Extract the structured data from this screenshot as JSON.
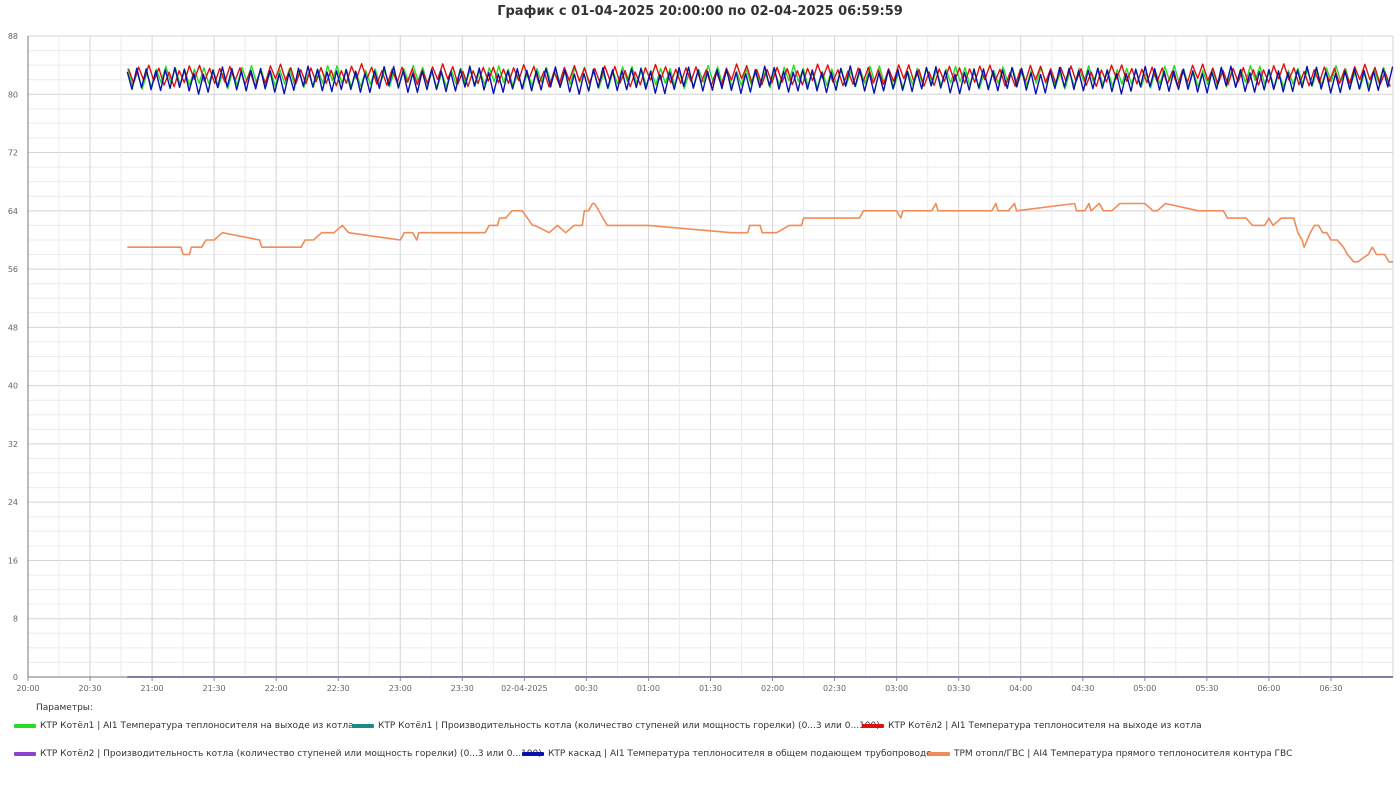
{
  "legend_header": "Параметры:",
  "chart_data": {
    "type": "line",
    "title": "График с 01-04-2025 20:00:00 по 02-04-2025 06:59:59",
    "xlabel": "",
    "ylabel": "",
    "x_unit": "minutes",
    "xlim": [
      0,
      660
    ],
    "ylim": [
      0,
      88
    ],
    "x_ticks": [
      {
        "t": 0,
        "label": "20:00"
      },
      {
        "t": 30,
        "label": "20:30"
      },
      {
        "t": 60,
        "label": "21:00"
      },
      {
        "t": 90,
        "label": "21:30"
      },
      {
        "t": 120,
        "label": "22:00"
      },
      {
        "t": 150,
        "label": "22:30"
      },
      {
        "t": 180,
        "label": "23:00"
      },
      {
        "t": 210,
        "label": "23:30"
      },
      {
        "t": 240,
        "label": "02-04-2025"
      },
      {
        "t": 270,
        "label": "00:30"
      },
      {
        "t": 300,
        "label": "01:00"
      },
      {
        "t": 330,
        "label": "01:30"
      },
      {
        "t": 360,
        "label": "02:00"
      },
      {
        "t": 390,
        "label": "02:30"
      },
      {
        "t": 420,
        "label": "03:00"
      },
      {
        "t": 450,
        "label": "03:30"
      },
      {
        "t": 480,
        "label": "04:00"
      },
      {
        "t": 510,
        "label": "04:30"
      },
      {
        "t": 540,
        "label": "05:00"
      },
      {
        "t": 570,
        "label": "05:30"
      },
      {
        "t": 600,
        "label": "06:00"
      },
      {
        "t": 630,
        "label": "06:30"
      }
    ],
    "y_ticks": [
      0,
      8,
      16,
      24,
      32,
      40,
      48,
      56,
      64,
      72,
      80,
      88
    ],
    "grid": true,
    "legend_position": "bottom",
    "series": [
      {
        "name": "КТР Котёл1 | AI1 Температура теплоносителя на выходе из котла",
        "color": "#22dd22",
        "osc": {
          "start": 48,
          "end": 660,
          "period": 4.6,
          "phase": 0.25,
          "low": 81.3,
          "high": 83.4
        }
      },
      {
        "name": "КТР Котёл1 | Производительность котла (количество ступеней или мощность горелки) (0...3 или 0...100)",
        "color": "#1a8a8a",
        "x": [
          48,
          660
        ],
        "y": [
          0,
          0
        ]
      },
      {
        "name": "КТР Котёл2 | AI1 Температура теплоносителя на выходе из котла",
        "color": "#dd1111",
        "osc": {
          "start": 48,
          "end": 660,
          "period": 4.9,
          "phase": 0.6,
          "low": 81.6,
          "high": 83.6
        }
      },
      {
        "name": "КТР Котёл2 | Производительность котла (количество ступеней или мощность горелки) (0...3 или 0...100)",
        "color": "#8844cc",
        "x": [
          48,
          660
        ],
        "y": [
          0,
          0
        ]
      },
      {
        "name": "КТР каскад | AI1 Температура теплоносителя в общем подающем трубопроводе",
        "color": "#0a10aa",
        "osc": {
          "start": 48,
          "end": 660,
          "period": 4.6,
          "phase": 0.0,
          "low": 80.6,
          "high": 83.3
        }
      },
      {
        "name": "ТРМ отопл/ГВС | AI4 Температура прямого теплоносителя контура ГВС",
        "color": "#f08c5a",
        "x": [
          48,
          70,
          72,
          74,
          75,
          78,
          79,
          84,
          86,
          87,
          90,
          94,
          112,
          113,
          116,
          118,
          124,
          130,
          132,
          134,
          137,
          138,
          142,
          145,
          146,
          148,
          152,
          155,
          180,
          182,
          183,
          186,
          188,
          189,
          193,
          194,
          200,
          204,
          206,
          210,
          214,
          216,
          221,
          223,
          225,
          227,
          228,
          231,
          234,
          236,
          239,
          244,
          245,
          252,
          256,
          260,
          264,
          268,
          269,
          271,
          273,
          274,
          280,
          300,
          340,
          348,
          349,
          354,
          355,
          362,
          368,
          374,
          375,
          402,
          404,
          405,
          412,
          420,
          422,
          423,
          426,
          428,
          429,
          437,
          439,
          440,
          460,
          461,
          462,
          465,
          466,
          468,
          469,
          474,
          477,
          478,
          506,
          507,
          510,
          511,
          513,
          514,
          518,
          520,
          523,
          524,
          528,
          540,
          544,
          546,
          550,
          566,
          569,
          572,
          578,
          580,
          581,
          584,
          585,
          589,
          592,
          596,
          598,
          600,
          602,
          606,
          612,
          614,
          616,
          617,
          620,
          622,
          624,
          626,
          628,
          630,
          633,
          636,
          638,
          641,
          643,
          648,
          650,
          652,
          656,
          658,
          660
        ],
        "y": [
          59,
          59,
          59,
          59,
          58,
          58,
          59,
          59,
          60,
          60,
          60,
          61,
          60,
          59,
          59,
          59,
          59,
          59,
          59,
          60,
          60,
          60,
          61,
          61,
          61,
          61,
          62,
          61,
          60,
          61,
          61,
          61,
          60,
          61,
          61,
          61,
          61,
          61,
          61,
          61,
          61,
          61,
          61,
          62,
          62,
          62,
          63,
          63,
          64,
          64,
          64,
          62,
          62,
          61,
          62,
          61,
          62,
          62,
          64,
          64,
          65,
          65,
          62,
          62,
          61,
          61,
          62,
          62,
          61,
          61,
          62,
          62,
          63,
          63,
          64,
          64,
          64,
          64,
          63,
          64,
          64,
          64,
          64,
          64,
          65,
          64,
          64,
          64,
          64,
          64,
          64,
          65,
          64,
          64,
          65,
          64,
          65,
          64,
          64,
          64,
          65,
          64,
          65,
          64,
          64,
          64,
          65,
          65,
          64,
          64,
          65,
          64,
          64,
          64,
          64,
          63,
          63,
          63,
          63,
          63,
          62,
          62,
          62,
          63,
          62,
          63,
          63,
          61,
          60,
          59,
          61,
          62,
          62,
          61,
          61,
          60,
          60,
          59,
          58,
          57,
          57,
          58,
          59,
          58,
          58,
          57,
          57
        ]
      }
    ]
  }
}
